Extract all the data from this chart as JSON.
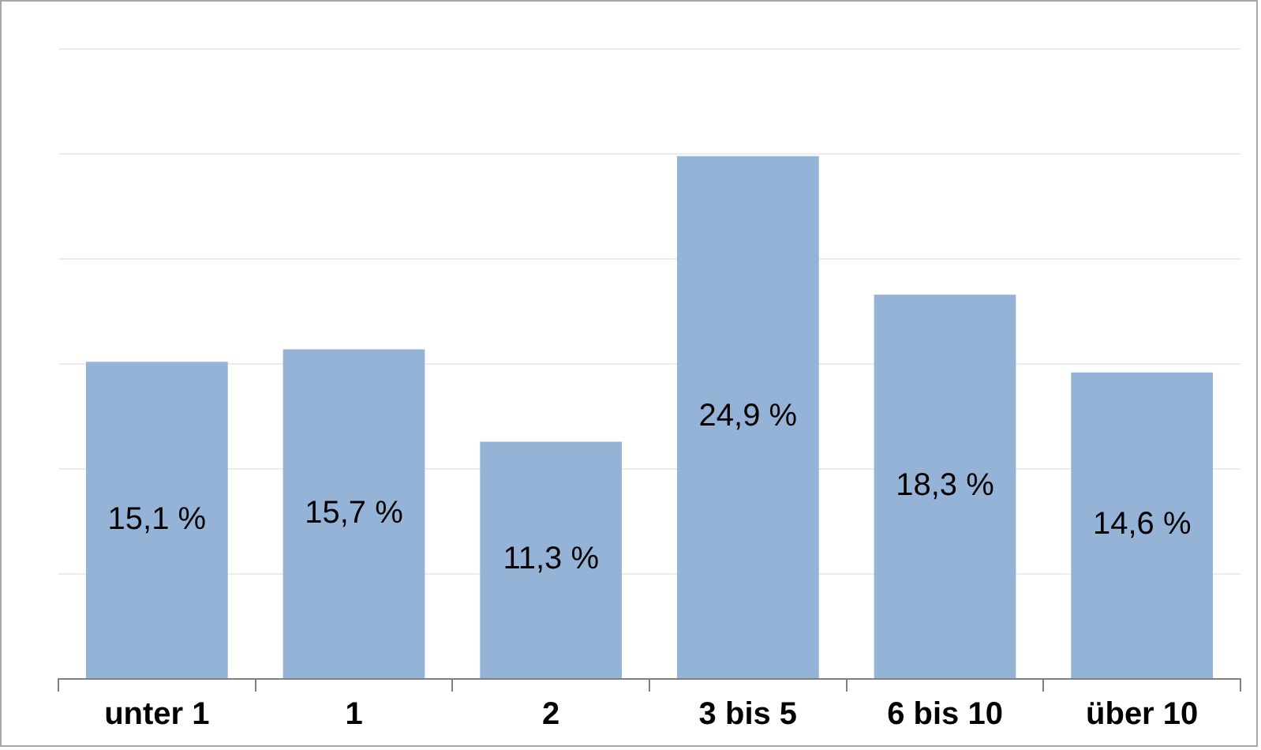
{
  "chart_data": {
    "type": "bar",
    "categories": [
      "unter 1",
      "1",
      "2",
      "3 bis 5",
      "6 bis 10",
      "über 10"
    ],
    "values": [
      15.1,
      15.7,
      11.3,
      24.9,
      18.3,
      14.6
    ],
    "value_labels": [
      "15,1 %",
      "15,7 %",
      "11,3 %",
      "24,9 %",
      "18,3 %",
      "14,6 %"
    ],
    "color": "#95b3d7",
    "ylim": [
      0,
      30
    ],
    "yticks": [
      {
        "value": 0,
        "label": null
      },
      {
        "value": 5,
        "label": null
      },
      {
        "value": 10,
        "label": null
      },
      {
        "value": 15,
        "label": null
      },
      {
        "value": 20,
        "label": null
      },
      {
        "value": 25,
        "label": null
      },
      {
        "value": 30,
        "label": null
      }
    ],
    "grid": "y",
    "legend": false,
    "tick_labels": "x"
  }
}
